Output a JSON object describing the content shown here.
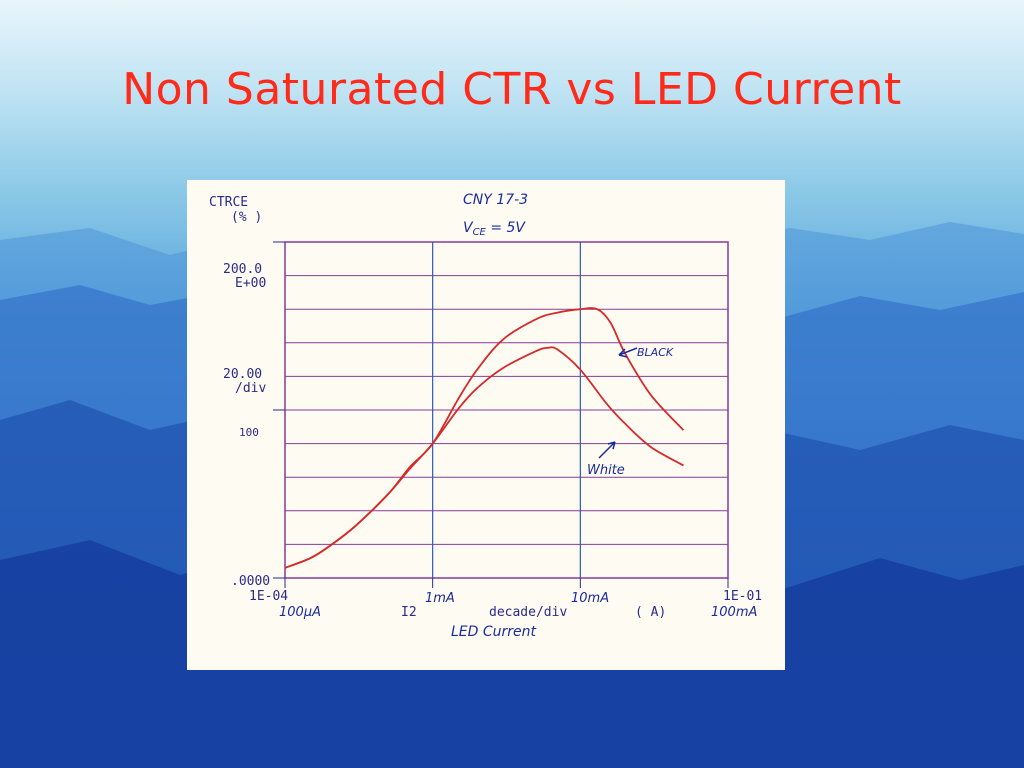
{
  "slide": {
    "title": "Non Saturated CTR vs LED Current"
  },
  "chart_data": {
    "type": "line",
    "x_scale": "log",
    "xlim": [
      0.0001,
      0.1
    ],
    "ylim": [
      0,
      200
    ],
    "grid": true,
    "y_axis": {
      "name_line1": "CTRCE",
      "name_line2": "(% )",
      "top_label": "200.0",
      "top_label2": "E+00",
      "div_label": "20.00",
      "div_label2": "/div",
      "mid_label": "100",
      "bottom_label": ".0000"
    },
    "x_axis": {
      "left_label": "1E-04",
      "left_label2": "100µA",
      "mark_1mA": "1mA",
      "mark_10mA": "10mA",
      "right_label": "1E-01",
      "right_label2": "100mA",
      "channel_label": "I2",
      "div_text": "decade/div",
      "unit_label": "( A)",
      "caption": "LED Current"
    },
    "device_note": {
      "line1": "CNY 17-3",
      "line2": "V",
      "line2_sub": "CE",
      "line2_rest": " = 5V"
    },
    "series": [
      {
        "name": "BLACK",
        "color": "#d42a2a",
        "x": [
          0.0001,
          0.00015,
          0.0002,
          0.0003,
          0.0005,
          0.0007,
          0.001,
          0.0015,
          0.002,
          0.003,
          0.005,
          0.007,
          0.01,
          0.013,
          0.016,
          0.02,
          0.03,
          0.05
        ],
        "y": [
          6,
          12,
          19,
          31,
          50,
          66,
          80,
          107,
          124,
          142,
          154,
          158,
          160,
          160,
          152,
          134,
          109,
          88
        ]
      },
      {
        "name": "White",
        "color": "#d42a2a",
        "x": [
          0.0001,
          0.00015,
          0.0002,
          0.0003,
          0.0005,
          0.0007,
          0.001,
          0.0015,
          0.002,
          0.003,
          0.005,
          0.006,
          0.007,
          0.01,
          0.015,
          0.02,
          0.03,
          0.05
        ],
        "y": [
          6,
          12,
          19,
          31,
          50,
          65,
          80,
          101,
          113,
          125,
          135,
          137,
          136,
          124,
          104,
          92,
          78,
          67
        ]
      }
    ]
  }
}
